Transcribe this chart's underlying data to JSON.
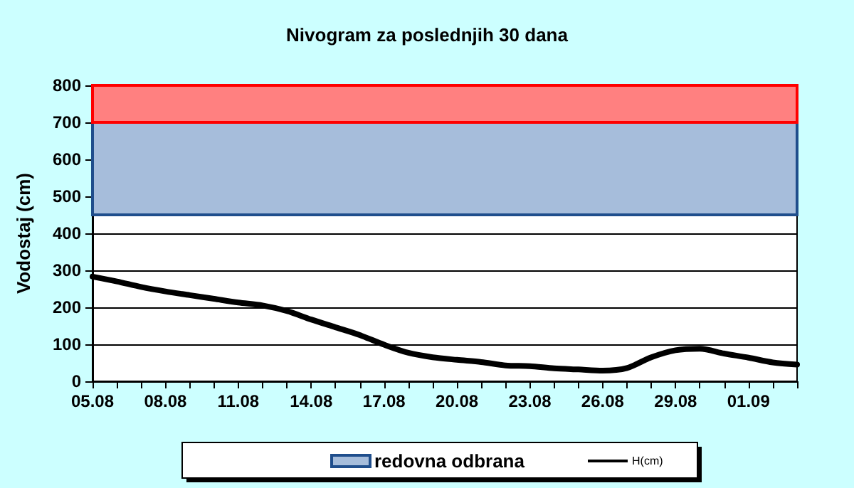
{
  "chart_data": {
    "type": "line",
    "title": "Nivogram za poslednjih 30 dana",
    "ylabel": "Vodostaj (cm)",
    "categories": [
      "05.08",
      null,
      null,
      "08.08",
      null,
      null,
      "11.08",
      null,
      null,
      "14.08",
      null,
      null,
      "17.08",
      null,
      null,
      "20.08",
      null,
      null,
      "23.08",
      null,
      null,
      "26.08",
      null,
      null,
      "29.08",
      null,
      null,
      "01.09",
      null,
      null
    ],
    "series": [
      {
        "name": "H(cm)",
        "color": "#000000",
        "values": [
          283,
          270,
          255,
          243,
          233,
          223,
          213,
          205,
          190,
          167,
          146,
          125,
          99,
          77,
          65,
          58,
          52,
          43,
          41,
          35,
          32,
          29,
          36,
          65,
          84,
          88,
          75,
          64,
          51,
          45
        ]
      }
    ],
    "bands": [
      {
        "axis": "y",
        "from": 450,
        "to": 700,
        "label": "redovna odbrana",
        "color": "#a6bddb"
      },
      {
        "axis": "y",
        "from": 700,
        "to": 800,
        "color": "#ff8080"
      }
    ],
    "ylim": [
      0,
      800
    ],
    "yticks": [
      0,
      100,
      200,
      300,
      400,
      500,
      600,
      700,
      800
    ],
    "grid": "y",
    "legend": "bottom",
    "marker": "none",
    "line_style": "solid"
  }
}
